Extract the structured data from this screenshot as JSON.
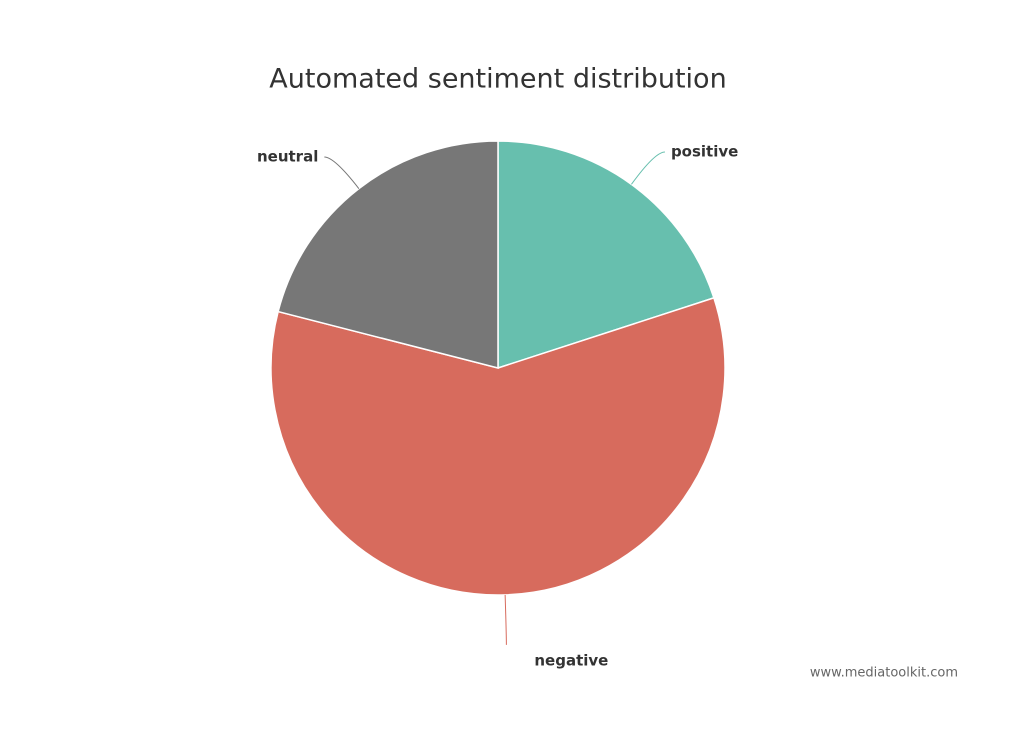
{
  "chart_data": {
    "type": "pie",
    "title": "Automated sentiment distribution",
    "categories": [
      "positive",
      "negative",
      "neutral"
    ],
    "values": [
      20,
      59,
      21
    ],
    "colors": [
      "#67bfae",
      "#d76b5d",
      "#777777"
    ],
    "source": "www.mediatoolkit.com"
  }
}
